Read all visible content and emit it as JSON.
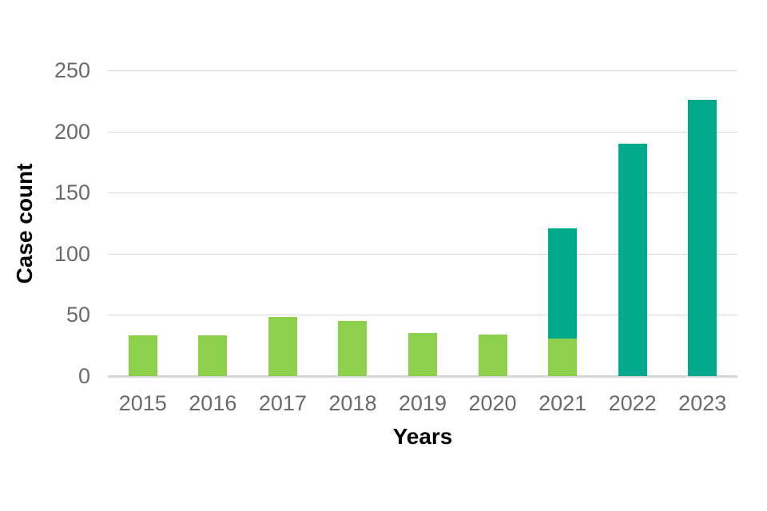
{
  "chart_data": {
    "type": "bar",
    "stacked": true,
    "title": "",
    "xlabel": "Years",
    "ylabel": "Case count",
    "categories": [
      "2015",
      "2016",
      "2017",
      "2018",
      "2019",
      "2020",
      "2021",
      "2022",
      "2023"
    ],
    "series": [
      {
        "name": "green",
        "color": "#8cd04b",
        "values": [
          33,
          33,
          48,
          45,
          35,
          34,
          31,
          0,
          0
        ]
      },
      {
        "name": "teal",
        "color": "#00a88c",
        "values": [
          0,
          0,
          0,
          0,
          0,
          0,
          90,
          190,
          226
        ]
      }
    ],
    "ylim": [
      0,
      250
    ],
    "yticks": [
      0,
      50,
      100,
      150,
      200,
      250
    ],
    "grid": true,
    "legend_position": "none"
  },
  "colors": {
    "background": "#ffffff",
    "gridline": "#d9d9d9",
    "axis_baseline": "#d6d6d6",
    "tick_text": "#6a6a6a",
    "axis_title_text": "#000000",
    "bar_green": "#8cd04b",
    "bar_teal": "#00a88c"
  }
}
